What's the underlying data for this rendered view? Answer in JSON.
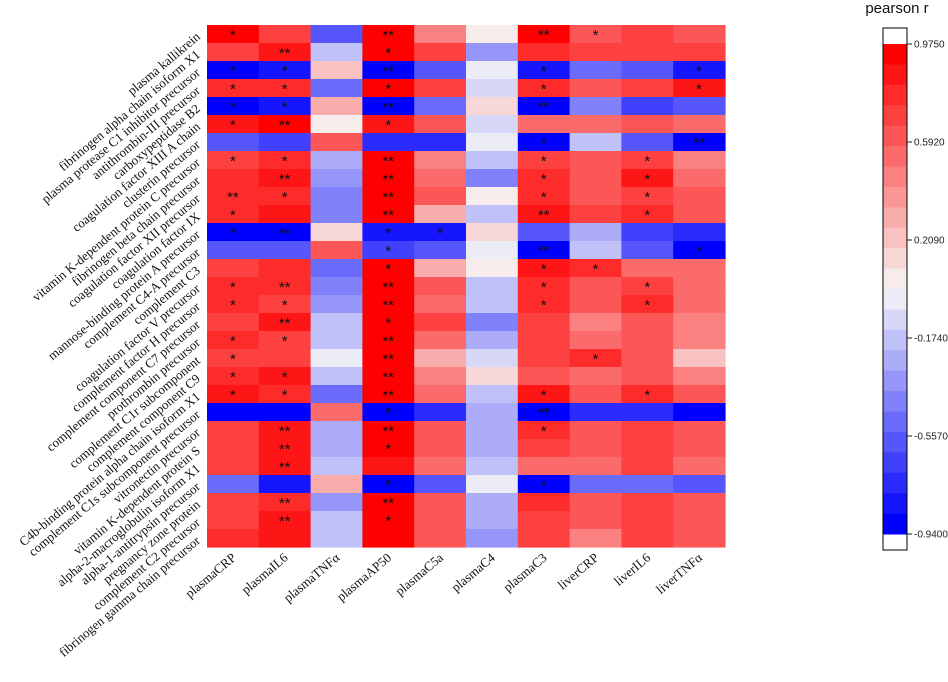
{
  "chart_data": {
    "type": "heatmap",
    "title": "",
    "xlabel": "",
    "ylabel": "",
    "colorbar": {
      "title": "pearson r",
      "range": [
        -0.94,
        0.975
      ],
      "tick_labels": [
        "0.9750",
        "0.5920",
        "0.2090",
        "-0.1740",
        "-0.5570",
        "-0.9400"
      ],
      "tick_values": [
        0.975,
        0.592,
        0.209,
        -0.174,
        -0.557,
        -0.94
      ],
      "colors": {
        "low": "#0000ff",
        "mid": "#f7f7f7",
        "high": "#ff0000"
      }
    },
    "columns": [
      "plasmaCRP",
      "plasmaIL6",
      "plasmaTNFα",
      "plasmaAP50",
      "plasmaC5a",
      "plasmaC4",
      "plasmaC3",
      "liverCRP",
      "liverIL6",
      "liverTNFα"
    ],
    "rows": [
      "plasma kallikrein",
      "fibrinogen alpha chain isoform X1",
      "plasma protease C1 inhibitor precursor",
      "antithrombin-III precursor",
      "carboxypeptidase B2",
      "coagulation factor XIII A chain",
      "clusterin precursor",
      "vitamin K-dependent protein C precursor",
      "fibrinogen beta chain precursor",
      "coagulation factor XII precursor",
      "coagulation factor IX",
      "mannose-binding protein A precursor",
      "complement C4-A precursor",
      "complement C3",
      "coagulation factor V precursor",
      "complement factor H precursor",
      "complement component C7 precursor",
      "prothrombin precursor",
      "complement C1r subcomponent",
      "complement component C9",
      "C4b-binding protein alpha chain isoform X1",
      "complement C1s subcomponent precursor",
      "vitronectin precursor",
      "vitamin K-dependent protein S",
      "alpha-2-macroglobulin isoform X1",
      "alpha-1-antitrypsin precursor",
      "pregnancy zone protein",
      "complement C2 precursor",
      "fibrinogen gamma chain precursor"
    ],
    "values": [
      [
        0.9,
        0.72,
        -0.55,
        0.95,
        0.45,
        0.03,
        0.9,
        0.62,
        0.72,
        0.62
      ],
      [
        0.72,
        0.82,
        -0.22,
        0.92,
        0.7,
        -0.32,
        0.78,
        0.66,
        0.72,
        0.7
      ],
      [
        -0.94,
        -0.8,
        0.22,
        -0.94,
        -0.62,
        -0.05,
        -0.85,
        -0.52,
        -0.6,
        -0.85
      ],
      [
        0.8,
        0.78,
        -0.5,
        0.92,
        0.72,
        -0.1,
        0.8,
        0.62,
        0.72,
        0.88
      ],
      [
        -0.88,
        -0.82,
        0.28,
        -0.9,
        -0.48,
        0.1,
        -0.88,
        -0.45,
        -0.7,
        -0.55
      ],
      [
        0.85,
        0.9,
        0.04,
        0.88,
        0.62,
        -0.1,
        0.55,
        0.55,
        0.6,
        0.55
      ],
      [
        -0.62,
        -0.66,
        0.6,
        -0.72,
        -0.72,
        -0.05,
        -0.88,
        -0.2,
        -0.55,
        -0.94
      ],
      [
        0.72,
        0.8,
        -0.25,
        0.95,
        0.45,
        -0.18,
        0.72,
        0.6,
        0.72,
        0.45
      ],
      [
        0.8,
        0.88,
        -0.32,
        0.95,
        0.5,
        -0.45,
        0.8,
        0.58,
        0.82,
        0.5
      ],
      [
        0.75,
        0.78,
        -0.4,
        0.95,
        0.6,
        0.03,
        0.8,
        0.62,
        0.72,
        0.58
      ],
      [
        0.8,
        0.82,
        -0.4,
        0.95,
        0.3,
        -0.22,
        0.88,
        0.7,
        0.78,
        0.62
      ],
      [
        -0.88,
        -0.92,
        0.15,
        -0.8,
        -0.85,
        0.1,
        -0.6,
        -0.28,
        -0.68,
        -0.72
      ],
      [
        -0.62,
        -0.62,
        0.65,
        -0.7,
        -0.62,
        0.0,
        -0.92,
        -0.2,
        -0.62,
        -0.94
      ],
      [
        0.72,
        0.75,
        -0.52,
        0.92,
        0.3,
        0.03,
        0.82,
        0.75,
        0.55,
        0.5
      ],
      [
        0.8,
        0.8,
        -0.4,
        0.92,
        0.6,
        -0.2,
        0.8,
        0.58,
        0.72,
        0.55
      ],
      [
        0.8,
        0.7,
        -0.35,
        0.9,
        0.55,
        -0.15,
        0.75,
        0.6,
        0.78,
        0.55
      ],
      [
        0.72,
        0.82,
        -0.18,
        0.92,
        0.7,
        -0.4,
        0.72,
        0.45,
        0.62,
        0.45
      ],
      [
        0.8,
        0.72,
        -0.15,
        0.92,
        0.52,
        -0.25,
        0.7,
        0.55,
        0.62,
        0.45
      ],
      [
        0.72,
        0.72,
        -0.05,
        0.95,
        0.28,
        -0.1,
        0.68,
        0.75,
        0.6,
        0.2
      ],
      [
        0.8,
        0.82,
        -0.2,
        0.95,
        0.45,
        0.1,
        0.65,
        0.52,
        0.6,
        0.45
      ],
      [
        0.82,
        0.8,
        -0.5,
        0.95,
        0.52,
        -0.2,
        0.82,
        0.58,
        0.78,
        0.62
      ],
      [
        -0.88,
        -0.88,
        0.55,
        -0.94,
        -0.72,
        -0.25,
        -0.92,
        -0.72,
        -0.72,
        -0.88
      ],
      [
        0.72,
        0.82,
        -0.25,
        0.92,
        0.6,
        -0.25,
        0.78,
        0.6,
        0.72,
        0.6
      ],
      [
        0.72,
        0.82,
        -0.3,
        0.92,
        0.6,
        -0.25,
        0.72,
        0.6,
        0.72,
        0.6
      ],
      [
        0.72,
        0.86,
        -0.15,
        0.88,
        0.55,
        -0.2,
        0.55,
        0.55,
        0.66,
        0.5
      ],
      [
        -0.5,
        -0.8,
        0.3,
        -0.92,
        -0.55,
        0.0,
        -0.94,
        -0.5,
        -0.52,
        -0.6
      ],
      [
        0.72,
        0.75,
        -0.35,
        0.92,
        0.6,
        -0.3,
        0.78,
        0.58,
        0.72,
        0.62
      ],
      [
        0.72,
        0.86,
        -0.2,
        0.92,
        0.62,
        -0.25,
        0.72,
        0.58,
        0.72,
        0.62
      ],
      [
        0.78,
        0.86,
        -0.15,
        0.92,
        0.65,
        -0.35,
        0.72,
        0.45,
        0.72,
        0.62
      ]
    ],
    "significance": [
      [
        "*",
        "",
        "",
        "**",
        "",
        "",
        "**",
        "*",
        "",
        ""
      ],
      [
        "",
        "**",
        "",
        "*",
        "",
        "",
        "",
        "",
        "",
        ""
      ],
      [
        "*",
        "*",
        "",
        "**",
        "",
        "",
        "*",
        "",
        "",
        "*"
      ],
      [
        "*",
        "*",
        "",
        "*",
        "",
        "",
        "*",
        "",
        "",
        "*"
      ],
      [
        "*",
        "*",
        "",
        "**",
        "",
        "",
        "**",
        "",
        "",
        ""
      ],
      [
        "*",
        "**",
        "",
        "*",
        "",
        "",
        "",
        "",
        "",
        ""
      ],
      [
        "",
        "",
        "",
        "",
        "",
        "",
        "*",
        "",
        "",
        "**"
      ],
      [
        "*",
        "*",
        "",
        "**",
        "",
        "",
        "*",
        "",
        "*",
        ""
      ],
      [
        "",
        "**",
        "",
        "**",
        "",
        "",
        "*",
        "",
        "*",
        ""
      ],
      [
        "**",
        "*",
        "",
        "**",
        "",
        "",
        "*",
        "",
        "*",
        ""
      ],
      [
        "*",
        "",
        "",
        "**",
        "",
        "",
        "**",
        "",
        "*",
        ""
      ],
      [
        "*",
        "**",
        "",
        "*",
        "*",
        "",
        "",
        "",
        "",
        ""
      ],
      [
        "",
        "",
        "",
        "*",
        "",
        "",
        "**",
        "",
        "",
        "*"
      ],
      [
        "",
        "",
        "",
        "*",
        "",
        "",
        "*",
        "*",
        "",
        ""
      ],
      [
        "*",
        "**",
        "",
        "**",
        "",
        "",
        "*",
        "",
        "*",
        ""
      ],
      [
        "*",
        "*",
        "",
        "**",
        "",
        "",
        "*",
        "",
        "*",
        ""
      ],
      [
        "",
        "**",
        "",
        "*",
        "",
        "",
        "",
        "",
        "",
        ""
      ],
      [
        "*",
        "*",
        "",
        "**",
        "",
        "",
        "",
        "",
        "",
        ""
      ],
      [
        "*",
        "",
        "",
        "**",
        "",
        "",
        "",
        "*",
        "",
        ""
      ],
      [
        "*",
        "*",
        "",
        "**",
        "",
        "",
        "",
        "",
        "",
        ""
      ],
      [
        "*",
        "*",
        "",
        "**",
        "",
        "",
        "*",
        "",
        "*",
        ""
      ],
      [
        "",
        "",
        "",
        "*",
        "",
        "",
        "**",
        "",
        "",
        ""
      ],
      [
        "",
        "**",
        "",
        "**",
        "",
        "",
        "*",
        "",
        "",
        ""
      ],
      [
        "",
        "**",
        "",
        "*",
        "",
        "",
        "",
        "",
        "",
        ""
      ],
      [
        "",
        "**",
        "",
        "",
        "",
        "",
        "",
        "",
        "",
        ""
      ],
      [
        "",
        "",
        "",
        "*",
        "",
        "",
        "*",
        "",
        "",
        ""
      ],
      [
        "",
        "**",
        "",
        "**",
        "",
        "",
        "",
        "",
        "",
        ""
      ],
      [
        "",
        "**",
        "",
        "*",
        "",
        "",
        "",
        "",
        "",
        ""
      ],
      [
        "",
        "",
        "",
        "",
        "",
        "",
        "",
        "",
        "",
        ""
      ]
    ]
  }
}
